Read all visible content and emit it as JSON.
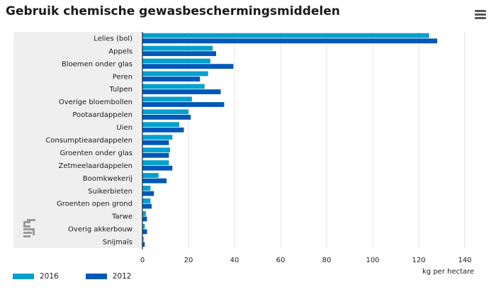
{
  "header": {
    "title": "Gebruik chemische gewasbeschermingsmiddelen",
    "menu_icon": "hamburger-menu-icon"
  },
  "logo": {
    "icon": "cbs-logo-icon"
  },
  "chart_data": {
    "type": "bar",
    "orientation": "horizontal",
    "title": "Gebruik chemische gewasbeschermingsmiddelen",
    "xlabel": "kg per hectare",
    "ylabel": "",
    "xlim": [
      0,
      140
    ],
    "xticks": [
      0,
      20,
      40,
      60,
      80,
      100,
      120,
      140
    ],
    "grid": true,
    "legend_position": "bottom-left",
    "categories": [
      "Lelies (bol)",
      "Appels",
      "Bloemen onder glas",
      "Peren",
      "Tulpen",
      "Overige bloembollen",
      "Pootaardappelen",
      "Uien",
      "Consumptieaardappelen",
      "Groenten onder glas",
      "Zetmeelaardappelen",
      "Boomkwekerij",
      "Suikerbieten",
      "Groenten open grond",
      "Tarwe",
      "Overig akkerbouw",
      "Snijmaïs"
    ],
    "series": [
      {
        "name": "2016",
        "color": "#00a1cd",
        "values": [
          124.5,
          30.5,
          29.5,
          28.5,
          27,
          21.5,
          20,
          16,
          13,
          12,
          11.5,
          7,
          3.5,
          3.5,
          1.5,
          1,
          0.5
        ]
      },
      {
        "name": "2012",
        "color": "#0058b8",
        "values": [
          128,
          32,
          39.5,
          25,
          34,
          35.5,
          21,
          18,
          11.5,
          11.5,
          13,
          10.5,
          5,
          4,
          2,
          2,
          1
        ]
      }
    ]
  }
}
